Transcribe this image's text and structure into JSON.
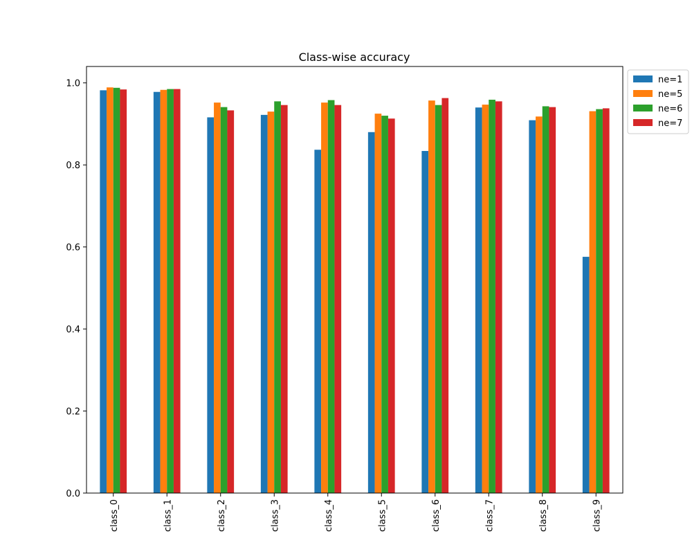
{
  "chart_data": {
    "type": "bar",
    "title": "Class-wise accuracy",
    "xlabel": "",
    "ylabel": "",
    "categories": [
      "class_0",
      "class_1",
      "class_2",
      "class_3",
      "class_4",
      "class_5",
      "class_6",
      "class_7",
      "class_8",
      "class_9"
    ],
    "series": [
      {
        "name": "ne=1",
        "color": "#1f77b4",
        "values": [
          0.982,
          0.978,
          0.916,
          0.922,
          0.837,
          0.88,
          0.834,
          0.94,
          0.909,
          0.576
        ]
      },
      {
        "name": "ne=5",
        "color": "#ff7f0e",
        "values": [
          0.989,
          0.983,
          0.952,
          0.93,
          0.952,
          0.925,
          0.957,
          0.947,
          0.918,
          0.931
        ]
      },
      {
        "name": "ne=6",
        "color": "#2ca02c",
        "values": [
          0.988,
          0.985,
          0.941,
          0.955,
          0.958,
          0.92,
          0.946,
          0.959,
          0.943,
          0.936
        ]
      },
      {
        "name": "ne=7",
        "color": "#d62728",
        "values": [
          0.984,
          0.985,
          0.933,
          0.946,
          0.946,
          0.913,
          0.963,
          0.955,
          0.941,
          0.938
        ]
      }
    ],
    "ylim": [
      0,
      1.04
    ],
    "yticks": [
      0.0,
      0.2,
      0.4,
      0.6,
      0.8,
      1.0
    ],
    "ytick_labels": [
      "0.0",
      "0.2",
      "0.4",
      "0.6",
      "0.8",
      "1.0"
    ],
    "grid": false,
    "legend_position": "outside-top-right"
  }
}
